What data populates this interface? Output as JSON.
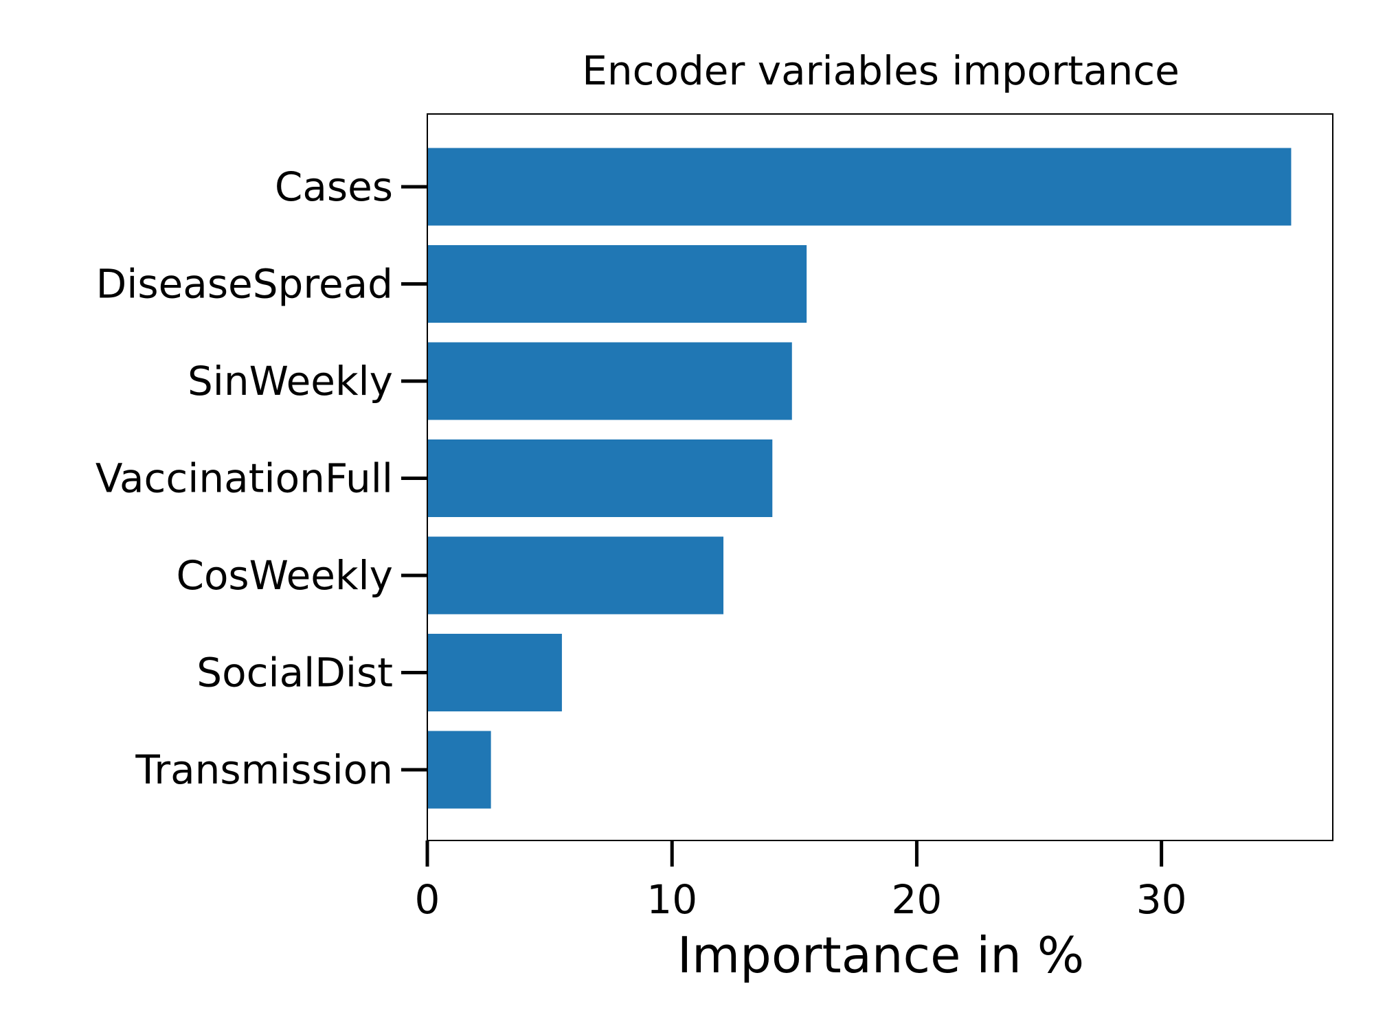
{
  "chart_data": {
    "type": "bar",
    "orientation": "horizontal",
    "title": "Encoder variables importance",
    "xlabel": "Importance in %",
    "ylabel": "",
    "categories": [
      "Cases",
      "DiseaseSpread",
      "SinWeekly",
      "VaccinationFull",
      "CosWeekly",
      "SocialDist",
      "Transmission"
    ],
    "values": [
      35.3,
      15.5,
      14.9,
      14.1,
      12.1,
      5.5,
      2.6
    ],
    "xlim": [
      0,
      37
    ],
    "xticks": [
      0,
      10,
      20,
      30
    ],
    "xtick_labels": [
      "0",
      "10",
      "20",
      "30"
    ],
    "bar_color": "#2077b4",
    "grid": false,
    "legend": "none"
  }
}
